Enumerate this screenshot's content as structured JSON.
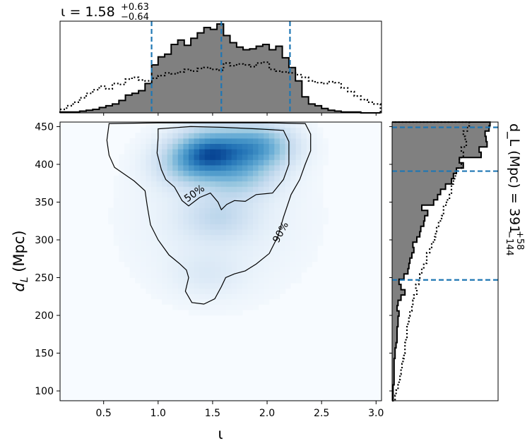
{
  "chart_data": [
    {
      "type": "heatmap",
      "panel": "joint",
      "xlabel": "ι",
      "ylabel": "d_L (Mpc)",
      "xlim": [
        0.1,
        3.05
      ],
      "ylim": [
        87,
        456
      ],
      "xticks": [
        0.5,
        1.0,
        1.5,
        2.0,
        2.5,
        3.0
      ],
      "xtick_labels": [
        "0.5",
        "1.0",
        "1.5",
        "2.0",
        "2.5",
        "3.0"
      ],
      "yticks": [
        100,
        150,
        200,
        250,
        300,
        350,
        400,
        450
      ],
      "ytick_labels": [
        "100",
        "150",
        "200",
        "250",
        "300",
        "350",
        "400",
        "450"
      ],
      "colormap": "Blues",
      "density_peaks": [
        {
          "x": 1.48,
          "y": 418,
          "weight": 1.0
        },
        {
          "x": 1.92,
          "y": 424,
          "weight": 0.85
        },
        {
          "x": 1.3,
          "y": 400,
          "weight": 0.5
        },
        {
          "x": 1.75,
          "y": 385,
          "weight": 0.45
        },
        {
          "x": 1.55,
          "y": 330,
          "weight": 0.28
        },
        {
          "x": 1.45,
          "y": 255,
          "weight": 0.12
        }
      ],
      "contours": [
        {
          "label": "50%",
          "label_at": {
            "x": 1.35,
            "y": 358,
            "angle": -35
          },
          "points": [
            [
              1.0,
              447
            ],
            [
              1.3,
              450
            ],
            [
              1.6,
              449
            ],
            [
              1.9,
              447
            ],
            [
              2.15,
              445
            ],
            [
              2.2,
              430
            ],
            [
              2.2,
              400
            ],
            [
              2.15,
              380
            ],
            [
              2.05,
              362
            ],
            [
              1.9,
              360
            ],
            [
              1.8,
              351
            ],
            [
              1.7,
              352
            ],
            [
              1.63,
              347
            ],
            [
              1.58,
              340
            ],
            [
              1.55,
              350
            ],
            [
              1.48,
              362
            ],
            [
              1.38,
              356
            ],
            [
              1.28,
              345
            ],
            [
              1.22,
              352
            ],
            [
              1.15,
              370
            ],
            [
              1.07,
              380
            ],
            [
              1.03,
              393
            ],
            [
              0.99,
              415
            ],
            [
              1.0,
              435
            ],
            [
              1.0,
              447
            ]
          ]
        },
        {
          "label": "90%",
          "label_at": {
            "x": 2.15,
            "y": 308,
            "angle": -62
          },
          "points": [
            [
              0.55,
              454
            ],
            [
              1.0,
              455
            ],
            [
              1.5,
              455
            ],
            [
              2.0,
              455
            ],
            [
              2.35,
              454
            ],
            [
              2.4,
              440
            ],
            [
              2.4,
              418
            ],
            [
              2.35,
              400
            ],
            [
              2.3,
              380
            ],
            [
              2.22,
              360
            ],
            [
              2.15,
              330
            ],
            [
              2.1,
              305
            ],
            [
              2.02,
              282
            ],
            [
              1.9,
              268
            ],
            [
              1.8,
              259
            ],
            [
              1.7,
              255
            ],
            [
              1.62,
              250
            ],
            [
              1.58,
              238
            ],
            [
              1.52,
              222
            ],
            [
              1.42,
              215
            ],
            [
              1.31,
              217
            ],
            [
              1.25,
              232
            ],
            [
              1.28,
              250
            ],
            [
              1.26,
              260
            ],
            [
              1.2,
              268
            ],
            [
              1.1,
              280
            ],
            [
              1.0,
              300
            ],
            [
              0.93,
              320
            ],
            [
              0.9,
              345
            ],
            [
              0.88,
              365
            ],
            [
              0.78,
              378
            ],
            [
              0.6,
              396
            ],
            [
              0.55,
              412
            ],
            [
              0.53,
              432
            ],
            [
              0.55,
              454
            ]
          ]
        }
      ]
    },
    {
      "type": "histogram",
      "panel": "top-marginal",
      "title": "ι = 1.58",
      "title_main": "ι = 1.58",
      "title_upper": "+0.63",
      "title_lower": "−0.64",
      "bin_edges": [
        0.1,
        0.16,
        0.22,
        0.28,
        0.34,
        0.4,
        0.46,
        0.52,
        0.58,
        0.64,
        0.7,
        0.76,
        0.82,
        0.88,
        0.94,
        1.0,
        1.06,
        1.12,
        1.18,
        1.24,
        1.3,
        1.36,
        1.42,
        1.48,
        1.54,
        1.6,
        1.66,
        1.72,
        1.78,
        1.84,
        1.9,
        1.96,
        2.02,
        2.08,
        2.14,
        2.2,
        2.26,
        2.32,
        2.38,
        2.44,
        2.5,
        2.56,
        2.62,
        2.68,
        2.74,
        2.8,
        2.86,
        2.92,
        2.98,
        3.04
      ],
      "series": [
        {
          "style": "filled-step",
          "values": [
            1,
            1,
            1,
            2,
            3,
            4,
            6,
            8,
            10,
            14,
            20,
            22,
            25,
            33,
            54,
            63,
            66,
            77,
            82,
            76,
            84,
            90,
            96,
            94,
            100,
            87,
            79,
            74,
            71,
            72,
            75,
            77,
            71,
            75,
            62,
            51,
            36,
            18,
            10,
            8,
            5,
            3,
            2,
            1,
            1,
            1,
            0,
            0,
            0
          ]
        },
        {
          "style": "dotted-step",
          "values": [
            4,
            8,
            12,
            17,
            22,
            26,
            30,
            27,
            33,
            32,
            38,
            40,
            37,
            36,
            39,
            42,
            45,
            44,
            46,
            49,
            47,
            50,
            51,
            49,
            48,
            56,
            53,
            55,
            54,
            52,
            56,
            57,
            49,
            47,
            46,
            45,
            43,
            40,
            36,
            34,
            33,
            35,
            34,
            28,
            24,
            19,
            15,
            12,
            10
          ]
        }
      ],
      "markers": [
        0.94,
        1.58,
        2.21
      ]
    },
    {
      "type": "histogram",
      "panel": "right-marginal",
      "orientation": "horizontal",
      "label": "d_L (Mpc) = 391",
      "label_main": "d_L (Mpc) = 391",
      "label_upper": "+58",
      "label_lower": "−144",
      "bin_edges": [
        87,
        94,
        101,
        108,
        115,
        122,
        129,
        136,
        143,
        150,
        157,
        164,
        171,
        178,
        185,
        192,
        199,
        206,
        213,
        220,
        227,
        234,
        241,
        248,
        255,
        262,
        269,
        276,
        283,
        290,
        297,
        304,
        311,
        318,
        325,
        332,
        339,
        346,
        353,
        360,
        367,
        374,
        381,
        388,
        395,
        402,
        409,
        416,
        423,
        430,
        437,
        444,
        451,
        456
      ],
      "series": [
        {
          "style": "filled-step",
          "values": [
            1,
            1,
            1,
            2,
            2,
            2,
            2,
            2,
            3,
            3,
            4,
            5,
            5,
            5,
            6,
            6,
            7,
            5,
            6,
            9,
            13,
            9,
            7,
            12,
            16,
            17,
            18,
            20,
            22,
            21,
            25,
            28,
            29,
            32,
            33,
            36,
            30,
            42,
            46,
            49,
            54,
            60,
            62,
            65,
            72,
            68,
            90,
            88,
            96,
            95,
            94,
            98,
            99
          ]
        },
        {
          "style": "dotted-step",
          "values": [
            3,
            4,
            6,
            7,
            8,
            9,
            10,
            11,
            12,
            13,
            13,
            14,
            15,
            15,
            16,
            17,
            18,
            20,
            21,
            22,
            25,
            24,
            27,
            28,
            30,
            32,
            35,
            35,
            38,
            40,
            43,
            44,
            45,
            47,
            50,
            52,
            52,
            55,
            58,
            60,
            60,
            62,
            64,
            66,
            70,
            68,
            72,
            70,
            75,
            74,
            72,
            76,
            78
          ]
        }
      ],
      "markers": [
        247,
        391,
        449
      ]
    }
  ]
}
